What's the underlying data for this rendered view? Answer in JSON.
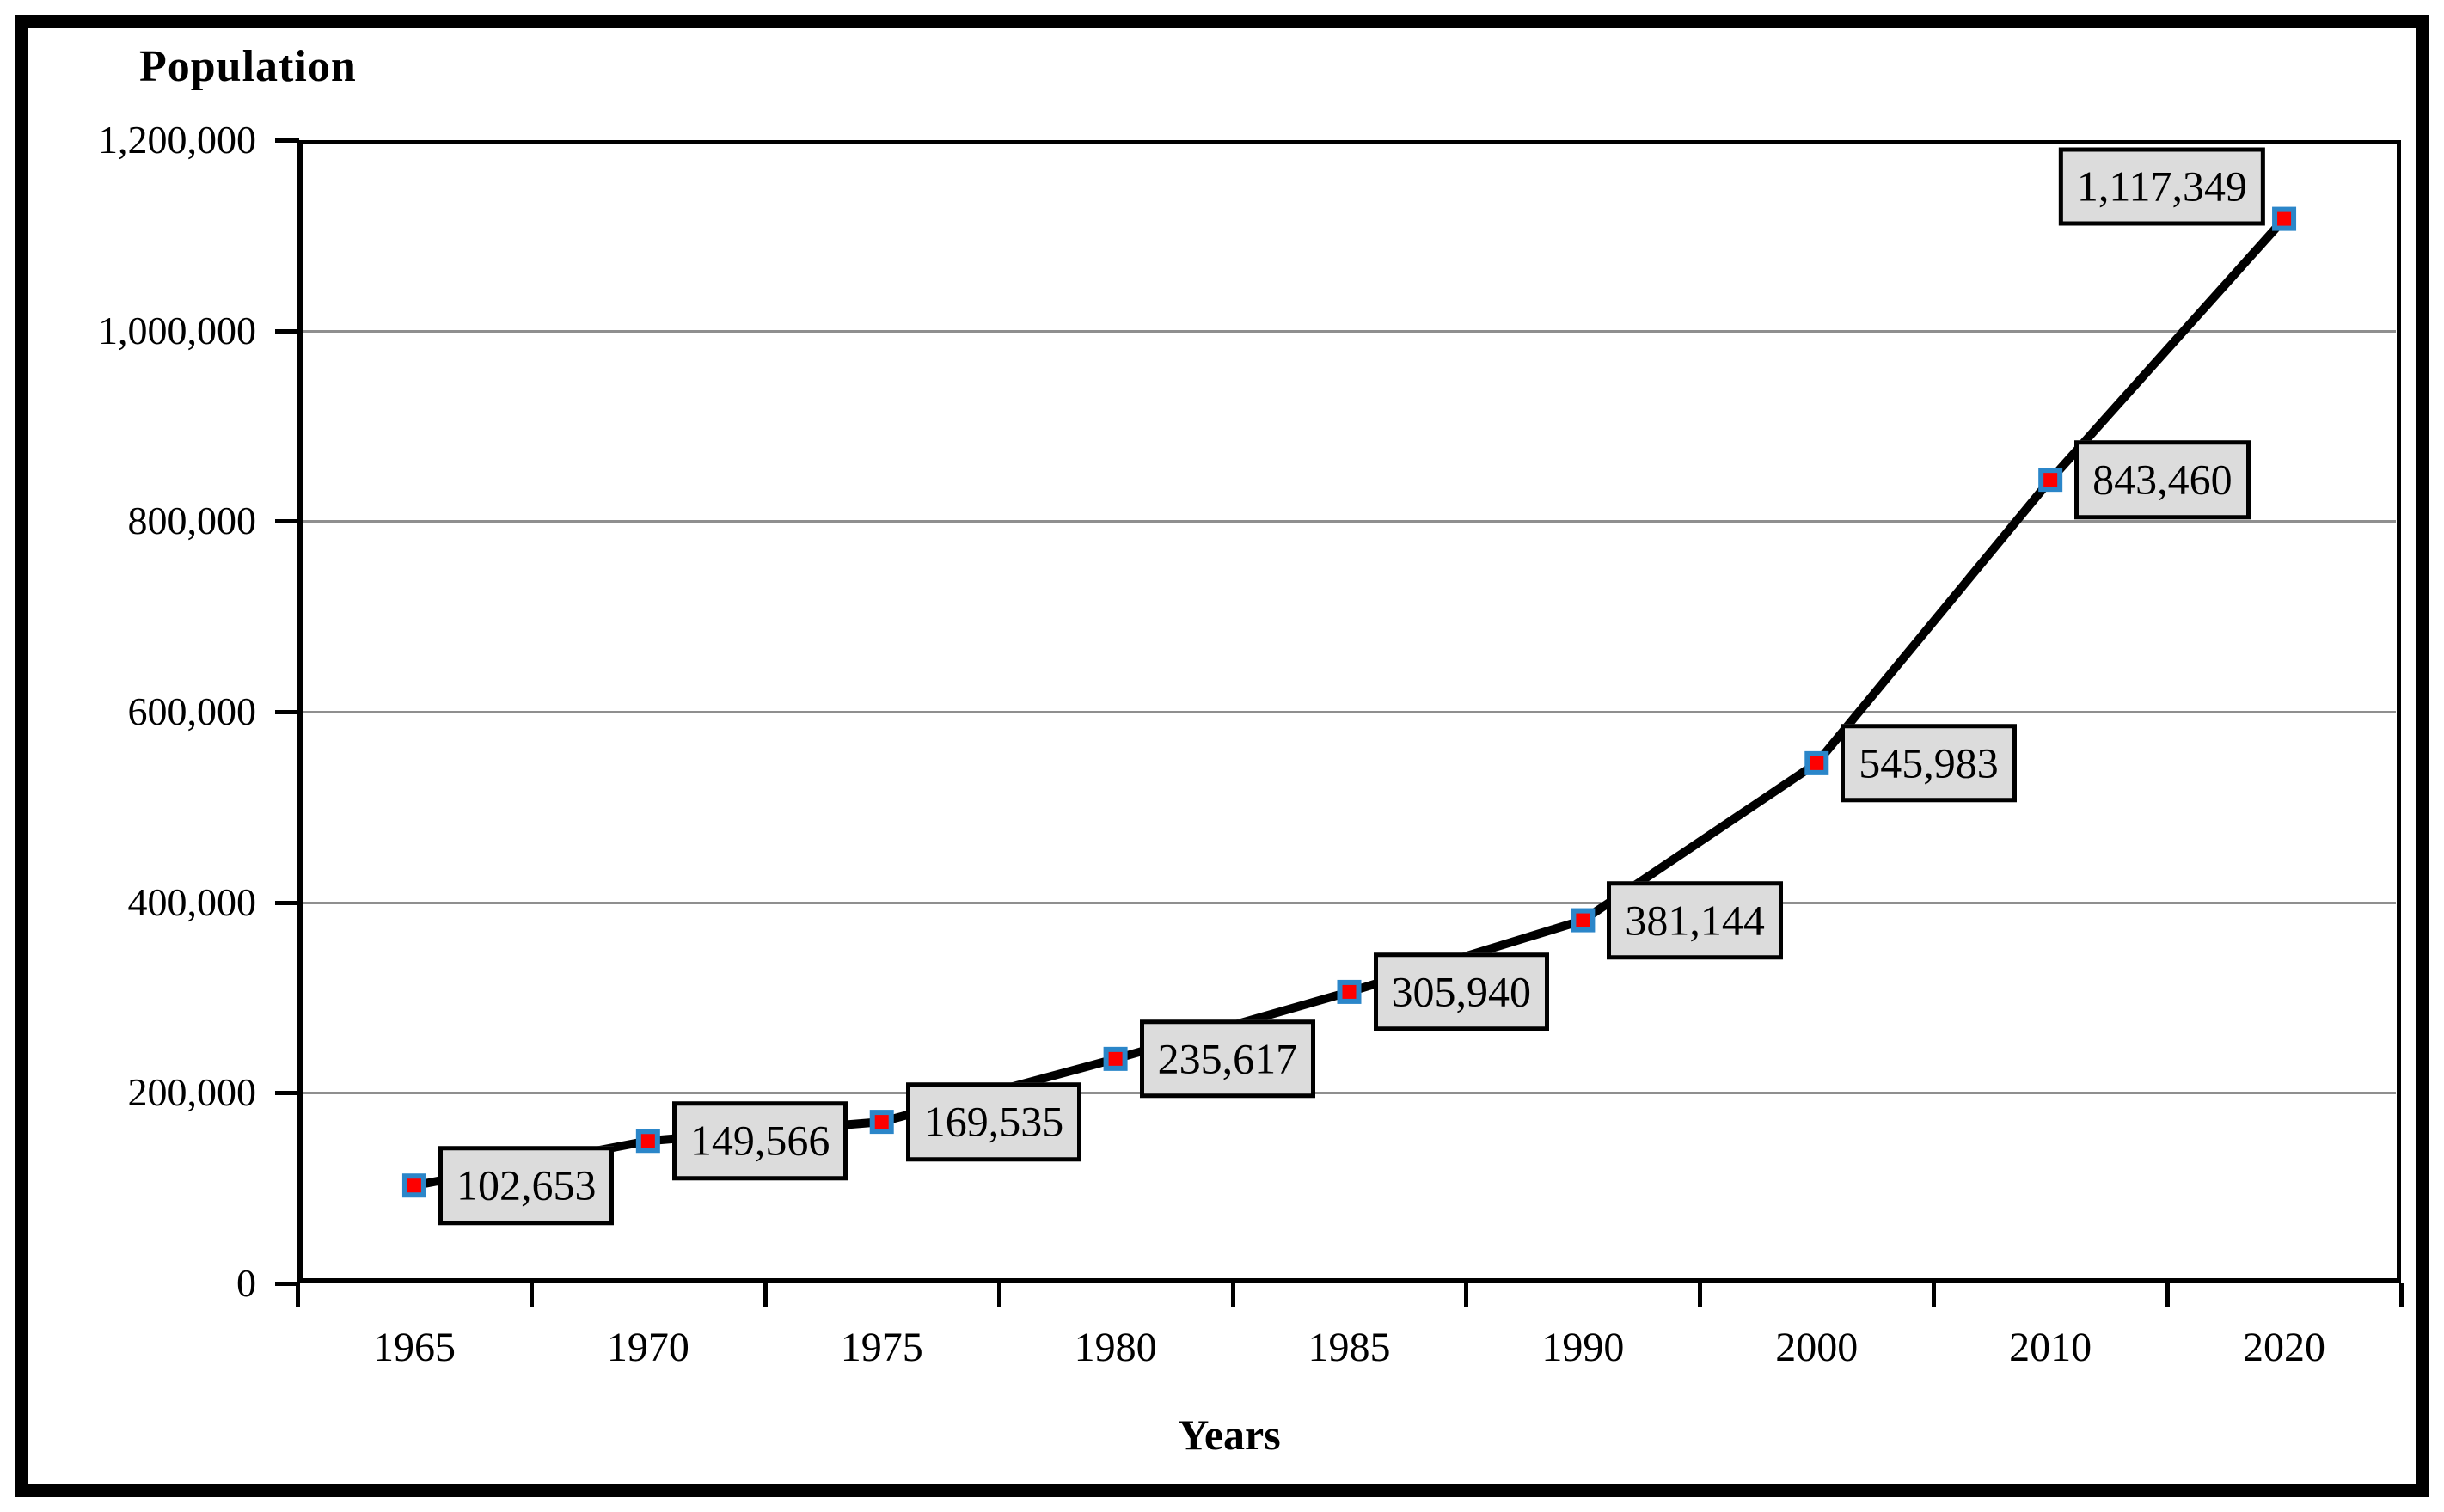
{
  "title": "Population",
  "xlabel": "Years",
  "chart_data": {
    "type": "line",
    "title": "Population",
    "xlabel": "Years",
    "ylabel": "Population",
    "categories": [
      "1965",
      "1970",
      "1975",
      "1980",
      "1985",
      "1990",
      "2000",
      "2010",
      "2020"
    ],
    "values": [
      102653,
      149566,
      169535,
      235617,
      305940,
      381144,
      545983,
      843460,
      1117349
    ],
    "point_labels": [
      "102,653",
      "149,566",
      "169,535",
      "235,617",
      "305,940",
      "381,144",
      "545,983",
      "843,460",
      "1,117,349"
    ],
    "ylim": [
      0,
      1200000
    ],
    "ytick_interval": 200000,
    "ytick_labels": [
      "0",
      "200,000",
      "400,000",
      "600,000",
      "800,000",
      "1,000,000",
      "1,200,000"
    ],
    "grid": true,
    "legend_position": "none",
    "colors": {
      "line": "#000000",
      "marker_fill": "#fe0000",
      "marker_border": "#2b86c9",
      "label_box_fill": "#dcdcdc",
      "label_box_border": "#000000",
      "gridline": "#8f8f8f",
      "axis": "#000000",
      "text": "#000000"
    }
  }
}
